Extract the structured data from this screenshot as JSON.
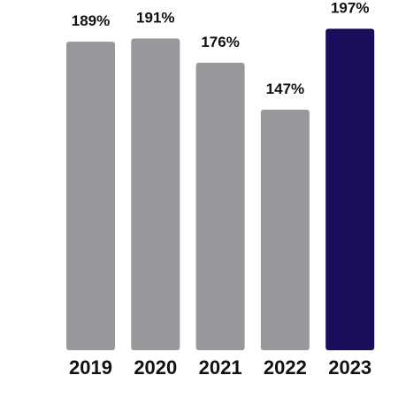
{
  "chart_data": {
    "type": "bar",
    "categories": [
      "2019",
      "2020",
      "2021",
      "2022",
      "2023"
    ],
    "values": [
      189,
      191,
      176,
      147,
      197
    ],
    "value_labels": [
      "189%",
      "191%",
      "176%",
      "147%",
      "197%"
    ],
    "ylim": [
      0,
      200
    ],
    "grid": false,
    "legend": "none",
    "colors": {
      "default": "#97989b",
      "highlight": "#1c0d5c"
    },
    "highlight_index": 4
  }
}
